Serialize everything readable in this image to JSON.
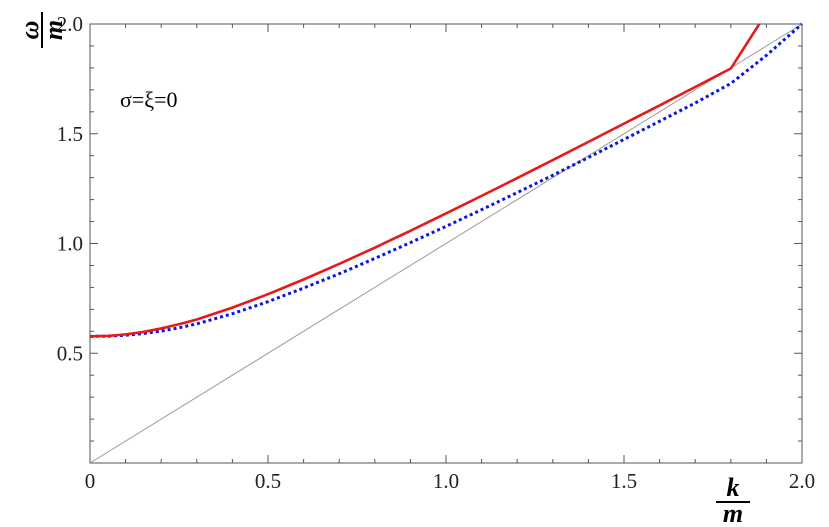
{
  "chart_data": {
    "type": "line",
    "title": "",
    "xlabel": {
      "numerator": "k",
      "denominator": "m"
    },
    "ylabel": {
      "numerator": "ω",
      "denominator": "m"
    },
    "xlim": [
      0,
      2
    ],
    "ylim": [
      0,
      2
    ],
    "xticks": [
      0,
      0.5,
      1.0,
      1.5,
      2.0
    ],
    "xtick_labels": [
      "0",
      "0.5",
      "1.0",
      "1.5",
      "2.0"
    ],
    "yticks": [
      0.5,
      1.0,
      1.5,
      2.0
    ],
    "ytick_labels": [
      "0.5",
      "1.0",
      "1.5",
      "2.0"
    ],
    "grid": false,
    "annotation": "σ=ξ=0",
    "series": [
      {
        "style": "solid",
        "color": "#e41a1c",
        "x": [
          0,
          0.05,
          0.1,
          0.15,
          0.2,
          0.25,
          0.3,
          0.4,
          0.5,
          0.6,
          0.7,
          0.8,
          0.9,
          1.0,
          1.1,
          1.2,
          1.3,
          1.4,
          1.5,
          1.6,
          1.7,
          1.8,
          1.88
        ],
        "y": [
          0.577,
          0.579,
          0.586,
          0.597,
          0.613,
          0.632,
          0.654,
          0.708,
          0.769,
          0.836,
          0.907,
          0.981,
          1.058,
          1.137,
          1.217,
          1.298,
          1.38,
          1.463,
          1.546,
          1.629,
          1.713,
          1.797,
          2.0
        ]
      },
      {
        "style": "dotted",
        "color": "#0a14e6",
        "x": [
          0,
          0.05,
          0.1,
          0.15,
          0.2,
          0.25,
          0.3,
          0.4,
          0.5,
          0.6,
          0.7,
          0.8,
          0.9,
          1.0,
          1.1,
          1.2,
          1.3,
          1.4,
          1.5,
          1.6,
          1.7,
          1.8,
          1.9,
          2.0
        ],
        "y": [
          0.577,
          0.578,
          0.582,
          0.59,
          0.601,
          0.616,
          0.634,
          0.68,
          0.735,
          0.797,
          0.862,
          0.932,
          1.004,
          1.078,
          1.154,
          1.232,
          1.311,
          1.392,
          1.474,
          1.557,
          1.64,
          1.729,
          1.857,
          2.0
        ]
      },
      {
        "style": "thin",
        "color": "#9a9a9a",
        "x": [
          0,
          2.0
        ],
        "y": [
          0,
          2.0
        ]
      }
    ]
  }
}
